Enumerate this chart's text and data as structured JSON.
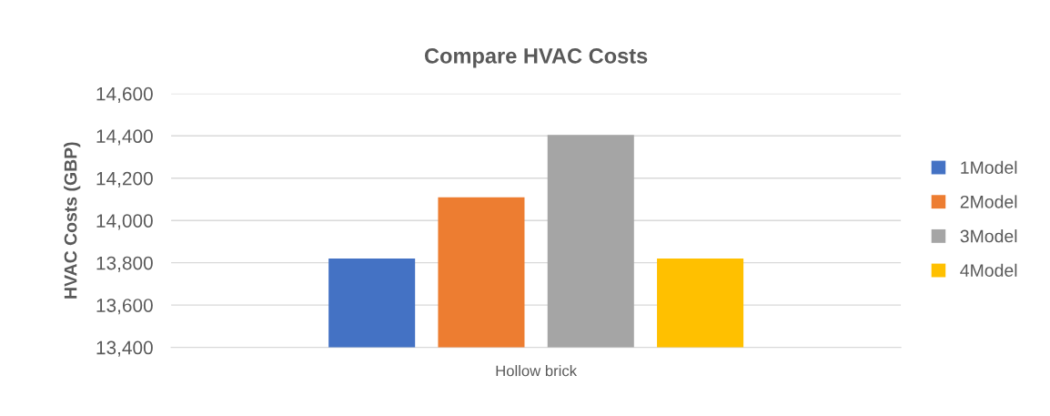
{
  "chart_data": {
    "type": "bar",
    "title": "Compare HVAC Costs",
    "ylabel": "HVAC Costs (GBP)",
    "categories": [
      "Hollow brick"
    ],
    "series": [
      {
        "name": "1Model",
        "color": "#4472c4",
        "values": [
          13820
        ]
      },
      {
        "name": "2Model",
        "color": "#ed7d31",
        "values": [
          14110
        ]
      },
      {
        "name": "3Model",
        "color": "#a5a5a5",
        "values": [
          14405
        ]
      },
      {
        "name": "4Model",
        "color": "#ffc000",
        "values": [
          13820
        ]
      }
    ],
    "ylim": [
      13400,
      14600
    ],
    "yticks": [
      {
        "value": 13400,
        "label": "13,400"
      },
      {
        "value": 13600,
        "label": "13,600"
      },
      {
        "value": 13800,
        "label": "13,800"
      },
      {
        "value": 14000,
        "label": "14,000"
      },
      {
        "value": 14200,
        "label": "14,200"
      },
      {
        "value": 14400,
        "label": "14,400"
      },
      {
        "value": 14600,
        "label": "14,600"
      }
    ],
    "grid": "y",
    "legend": "right"
  }
}
